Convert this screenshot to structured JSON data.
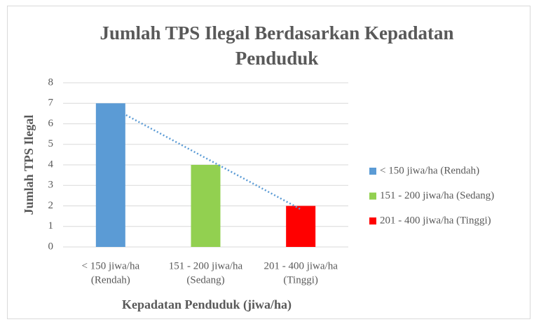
{
  "chart_data": {
    "type": "bar",
    "title": [
      "Jumlah TPS Ilegal Berdasarkan  Kepadatan",
      "Penduduk"
    ],
    "x_label": "Kepadatan Penduduk (jiwa/ha)",
    "y_label": "Jumlah TPS Ilegal",
    "categories": [
      [
        "< 150 jiwa/ha",
        "(Rendah)"
      ],
      [
        "151 - 200 jiwa/ha",
        "(Sedang)"
      ],
      [
        "201 - 400 jiwa/ha",
        "(Tinggi)"
      ]
    ],
    "values": [
      7,
      4,
      2
    ],
    "colors": [
      "#5b9bd5",
      "#92d050",
      "#ff0000"
    ],
    "legend": [
      "< 150 jiwa/ha (Rendah)",
      "151 - 200 jiwa/ha (Sedang)",
      "201 - 400 jiwa/ha (Tinggi)"
    ],
    "legend_position": "right",
    "trendline": "linear",
    "ylim": [
      0,
      8
    ],
    "yticks": [
      0,
      1,
      2,
      3,
      4,
      5,
      6,
      7,
      8
    ],
    "grid": true
  }
}
